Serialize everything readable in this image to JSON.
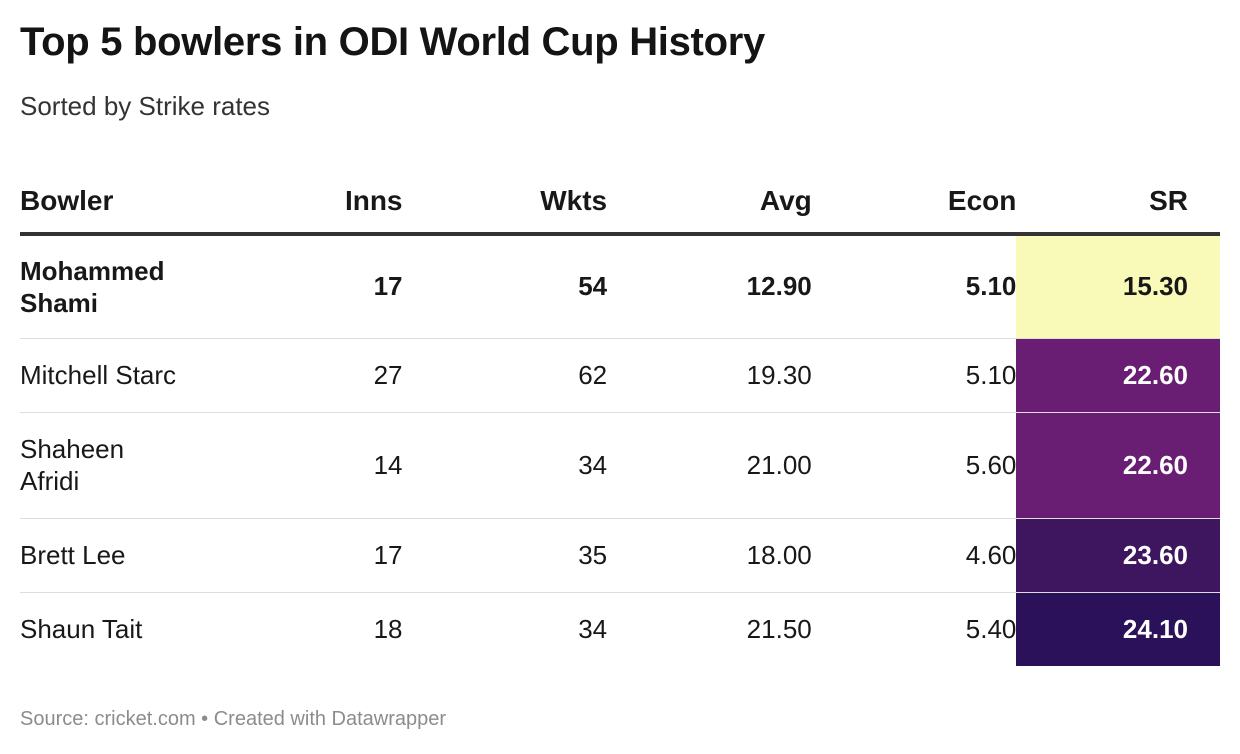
{
  "title": "Top 5 bowlers in ODI World Cup History",
  "subtitle": "Sorted by Strike rates",
  "footer": "Source: cricket.com • Created with Datawrapper",
  "chart_data": {
    "type": "table",
    "columns": [
      "Bowler",
      "Inns",
      "Wkts",
      "Avg",
      "Econ",
      "SR"
    ],
    "rows": [
      {
        "bowler": "Mohammed Shami",
        "inns": "17",
        "wkts": "54",
        "avg": "12.90",
        "econ": "5.10",
        "sr": "15.30",
        "sr_bg": "#f9f9b8",
        "sr_fg": "#181818",
        "bold": true
      },
      {
        "bowler": "Mitchell Starc",
        "inns": "27",
        "wkts": "62",
        "avg": "19.30",
        "econ": "5.10",
        "sr": "22.60",
        "sr_bg": "#6a1e73",
        "sr_fg": "#ffffff",
        "bold": false
      },
      {
        "bowler": "Shaheen Afridi",
        "inns": "14",
        "wkts": "34",
        "avg": "21.00",
        "econ": "5.60",
        "sr": "22.60",
        "sr_bg": "#6a1e73",
        "sr_fg": "#ffffff",
        "bold": false
      },
      {
        "bowler": "Brett Lee",
        "inns": "17",
        "wkts": "35",
        "avg": "18.00",
        "econ": "4.60",
        "sr": "23.60",
        "sr_bg": "#3e1660",
        "sr_fg": "#ffffff",
        "bold": false
      },
      {
        "bowler": "Shaun Tait",
        "inns": "18",
        "wkts": "34",
        "avg": "21.50",
        "econ": "5.40",
        "sr": "24.10",
        "sr_bg": "#2b105a",
        "sr_fg": "#ffffff",
        "bold": false
      }
    ]
  }
}
